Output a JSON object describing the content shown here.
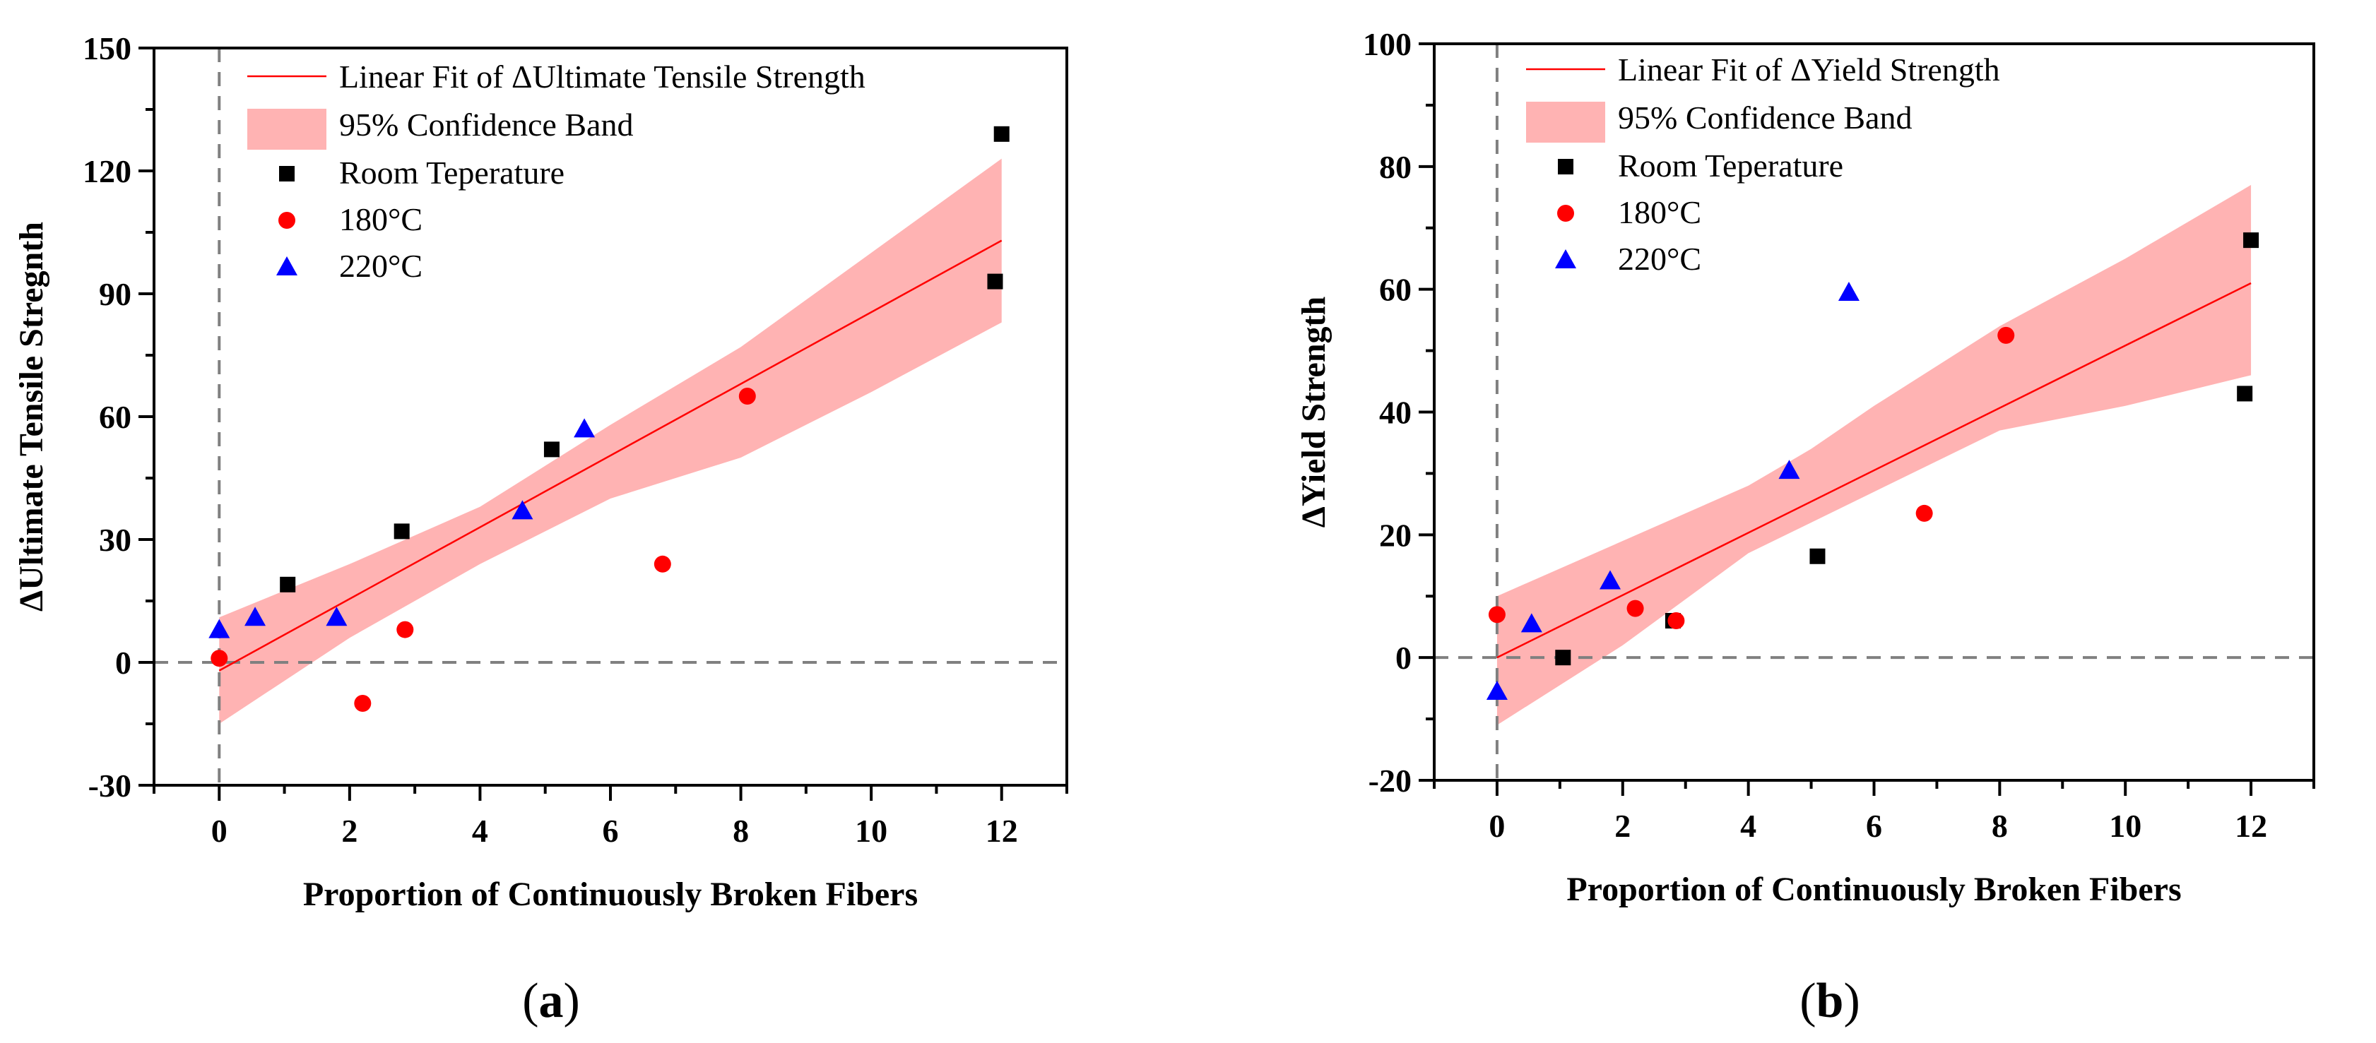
{
  "chart_data": [
    {
      "type": "scatter",
      "panel_label": "a",
      "xlabel": "Proportion of Continuously Broken Fibers",
      "ylabel": "ΔUltimate Tensile Stregnth",
      "xlim": [
        -1,
        13
      ],
      "ylim": [
        -30,
        150
      ],
      "xticks": [
        0,
        2,
        4,
        6,
        8,
        10,
        12
      ],
      "yticks": [
        -30,
        0,
        30,
        60,
        90,
        120,
        150
      ],
      "grid": false,
      "legend_position": "top-left",
      "reference_lines": {
        "x": 0,
        "y": 0
      },
      "fit": {
        "name": "Linear Fit of ΔUltimate Tensile Strength",
        "color": "#ff0000",
        "x": [
          0,
          12
        ],
        "y": [
          -2,
          103
        ]
      },
      "band": {
        "name": "95% Confidence Band",
        "color": "#ffb3b3",
        "x": [
          0,
          2,
          4,
          5,
          6,
          8,
          10,
          12
        ],
        "upper": [
          11,
          24,
          38,
          48,
          58,
          77,
          100,
          123
        ],
        "lower": [
          -15,
          6,
          24,
          32,
          40,
          50,
          66,
          83
        ]
      },
      "series": [
        {
          "name": "Room Teperature",
          "marker": "square",
          "color": "#000000",
          "x": [
            1.05,
            2.8,
            5.1,
            11.9,
            12.0
          ],
          "y": [
            19,
            32,
            52,
            93,
            129
          ]
        },
        {
          "name": "180°C",
          "marker": "circle",
          "color": "#ff0000",
          "x": [
            0,
            2.2,
            2.85,
            6.8,
            8.1
          ],
          "y": [
            1,
            -10,
            8,
            24,
            65
          ]
        },
        {
          "name": "220°C",
          "marker": "triangle",
          "color": "#0000ff",
          "x": [
            0,
            0.55,
            1.8,
            4.65,
            5.6
          ],
          "y": [
            8,
            11,
            11,
            37,
            57
          ]
        }
      ]
    },
    {
      "type": "scatter",
      "panel_label": "b",
      "xlabel": "Proportion of Continuously Broken Fibers",
      "ylabel": "ΔYield Strength",
      "xlim": [
        -1,
        13
      ],
      "ylim": [
        -20,
        100
      ],
      "xticks": [
        0,
        2,
        4,
        6,
        8,
        10,
        12
      ],
      "yticks": [
        -20,
        0,
        20,
        40,
        60,
        80,
        100
      ],
      "grid": false,
      "legend_position": "top-left",
      "reference_lines": {
        "x": 0,
        "y": 0
      },
      "fit": {
        "name": "Linear Fit of ΔYield Strength",
        "color": "#ff0000",
        "x": [
          0,
          12
        ],
        "y": [
          0,
          61
        ]
      },
      "band": {
        "name": "95% Confidence Band",
        "color": "#ffb3b3",
        "x": [
          0,
          2,
          4,
          5,
          6,
          8,
          10,
          12
        ],
        "upper": [
          10,
          19,
          28,
          34,
          41,
          54,
          65,
          77
        ],
        "lower": [
          -11,
          2,
          17,
          22,
          27,
          37,
          41,
          46
        ]
      },
      "series": [
        {
          "name": "Room Teperature",
          "marker": "square",
          "color": "#000000",
          "x": [
            1.05,
            2.8,
            5.1,
            11.9,
            12.0
          ],
          "y": [
            0,
            6,
            16.5,
            43,
            68
          ]
        },
        {
          "name": "180°C",
          "marker": "circle",
          "color": "#ff0000",
          "x": [
            0,
            2.2,
            2.85,
            6.8,
            8.1
          ],
          "y": [
            7,
            8,
            6,
            23.5,
            52.5
          ]
        },
        {
          "name": "220°C",
          "marker": "triangle",
          "color": "#0000ff",
          "x": [
            0,
            0.55,
            1.8,
            4.65,
            5.6
          ],
          "y": [
            -5.5,
            5.5,
            12.5,
            30.5,
            59.5
          ]
        }
      ]
    }
  ]
}
